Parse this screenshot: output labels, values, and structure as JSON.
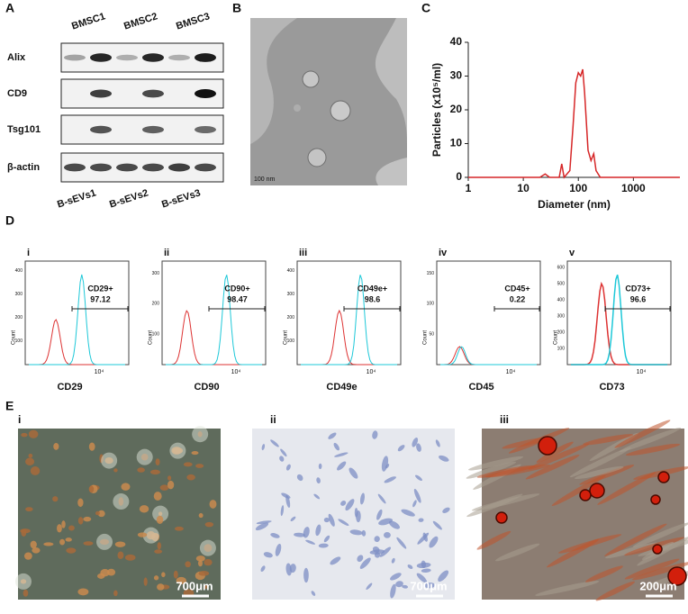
{
  "panel_a": {
    "label": "A",
    "columns": [
      "BMSC1",
      "BMSC2",
      "BMSC3"
    ],
    "rows": [
      "Alix",
      "CD9",
      "Tsg101",
      "β-actin"
    ],
    "lanes": [
      "B-sEVs1",
      "B-sEVs2",
      "B-sEVs3"
    ]
  },
  "panel_b": {
    "label": "B",
    "scale_bar": "100 nm"
  },
  "panel_c": {
    "label": "C"
  },
  "chart_data": {
    "type": "line",
    "x_label": "Diameter (nm)",
    "y_label": "Particles (x10⁵/ml)",
    "log_x": true,
    "color": "#d62728",
    "x": [
      1,
      20,
      25,
      30,
      45,
      50,
      55,
      70,
      80,
      90,
      100,
      110,
      120,
      130,
      150,
      170,
      190,
      210,
      250,
      7000
    ],
    "values": [
      0,
      0,
      1,
      0,
      0,
      4,
      0,
      2,
      15,
      28,
      31,
      30,
      32,
      25,
      8,
      5,
      7,
      2,
      0,
      0
    ],
    "xlim": [
      1,
      7000
    ],
    "ylim": [
      0,
      40
    ],
    "xticks": [
      1,
      10,
      100,
      1000
    ],
    "yticks": [
      0,
      10,
      20,
      30,
      40
    ]
  },
  "panel_d": {
    "label": "D",
    "plots": [
      {
        "label": "i",
        "marker": "CD29",
        "gate": "CD29+",
        "percent": 97.12,
        "x_tick": "10⁴",
        "y_axis": "Count",
        "y_ticks": [
          100,
          200,
          300,
          400
        ]
      },
      {
        "label": "ii",
        "marker": "CD90",
        "gate": "CD90+",
        "percent": 98.47,
        "x_tick": "10⁴",
        "y_axis": "Count",
        "y_ticks": [
          100,
          200,
          300
        ]
      },
      {
        "label": "iii",
        "marker": "CD49e",
        "gate": "CD49e+",
        "percent": 98.6,
        "x_tick": "10⁴",
        "y_axis": "Count",
        "y_ticks": [
          100,
          200,
          300,
          400
        ]
      },
      {
        "label": "iv",
        "marker": "CD45",
        "gate": "CD45+",
        "percent": 0.22,
        "x_tick": "10⁴",
        "y_axis": "Count",
        "y_ticks": [
          50,
          100,
          150
        ]
      },
      {
        "label": "v",
        "marker": "CD73",
        "gate": "CD73+",
        "percent": 96.6,
        "x_tick": "10⁴",
        "y_axis": "Count",
        "y_ticks": [
          100,
          200,
          300,
          400,
          500,
          600
        ]
      }
    ]
  },
  "panel_e": {
    "label": "E",
    "images": [
      {
        "label": "i",
        "scale": "700μm"
      },
      {
        "label": "ii",
        "scale": "700μm"
      },
      {
        "label": "iii",
        "scale": "200μm"
      }
    ]
  }
}
